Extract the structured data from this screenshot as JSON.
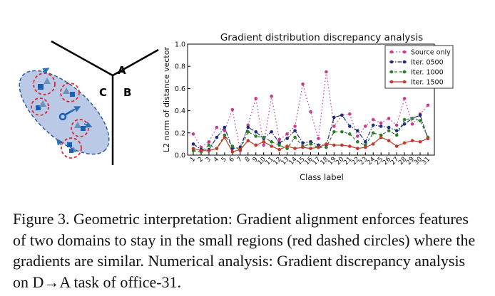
{
  "diagram": {
    "labels": {
      "a": "A",
      "b": "B",
      "c": "C"
    }
  },
  "chart_data": {
    "type": "line",
    "title": "Gradient distribution discrepancy analysis",
    "xlabel": "Class label",
    "ylabel": "L2 norm of distance vector",
    "ylim": [
      0.0,
      1.0
    ],
    "yticks": [
      "0.0",
      "0.2",
      "0.4",
      "0.6",
      "0.8",
      "1.0"
    ],
    "categories": [
      "1",
      "2",
      "3",
      "4",
      "5",
      "6",
      "7",
      "8",
      "9",
      "10",
      "11",
      "12",
      "13",
      "14",
      "15",
      "16",
      "17",
      "18",
      "19",
      "20",
      "21",
      "22",
      "23",
      "24",
      "25",
      "26",
      "27",
      "28",
      "29",
      "30",
      "31"
    ],
    "legend_position": "top-right",
    "series": [
      {
        "name": "Source only",
        "color": "#c53d8c",
        "linestyle": "dotted",
        "values": [
          0.19,
          0.07,
          0.12,
          0.25,
          0.22,
          0.41,
          0.04,
          0.27,
          0.51,
          0.09,
          0.53,
          0.14,
          0.19,
          0.26,
          0.64,
          0.39,
          0.15,
          0.75,
          0.26,
          0.36,
          0.37,
          0.17,
          0.26,
          0.32,
          0.29,
          0.33,
          0.27,
          0.51,
          0.28,
          0.37,
          0.45
        ]
      },
      {
        "name": "Iter. 0500",
        "color": "#1f2a7a",
        "linestyle": "dashdot",
        "values": [
          0.1,
          0.05,
          0.05,
          0.16,
          0.25,
          0.06,
          0.07,
          0.25,
          0.21,
          0.15,
          0.21,
          0.11,
          0.15,
          0.22,
          0.11,
          0.12,
          0.09,
          0.09,
          0.34,
          0.36,
          0.26,
          0.22,
          0.12,
          0.27,
          0.26,
          0.25,
          0.22,
          0.28,
          0.33,
          0.36,
          0.15
        ]
      },
      {
        "name": "Iter. 1000",
        "color": "#2e7d2e",
        "linestyle": "dashed",
        "values": [
          0.04,
          0.03,
          0.09,
          0.06,
          0.18,
          0.08,
          0.05,
          0.21,
          0.17,
          0.16,
          0.12,
          0.09,
          0.06,
          0.16,
          0.08,
          0.1,
          0.07,
          0.07,
          0.21,
          0.21,
          0.19,
          0.12,
          0.09,
          0.2,
          0.18,
          0.22,
          0.18,
          0.32,
          0.33,
          0.31,
          0.16
        ]
      },
      {
        "name": "Iter. 1500",
        "color": "#c0392b",
        "linestyle": "solid",
        "values": [
          0.06,
          0.04,
          0.04,
          0.06,
          0.16,
          0.03,
          0.05,
          0.13,
          0.09,
          0.12,
          0.08,
          0.05,
          0.08,
          0.06,
          0.07,
          0.06,
          0.07,
          0.1,
          0.09,
          0.09,
          0.08,
          0.06,
          0.07,
          0.1,
          0.16,
          0.13,
          0.08,
          0.11,
          0.13,
          0.12,
          0.15
        ]
      }
    ]
  },
  "caption": {
    "text": "Figure 3.  Geometric interpretation: Gradient alignment enforces features of two domains to stay in the small regions (red dashed circles) where the gradients are similar. Numerical analysis: Gradient discrepancy analysis on D→A task of office-31."
  }
}
